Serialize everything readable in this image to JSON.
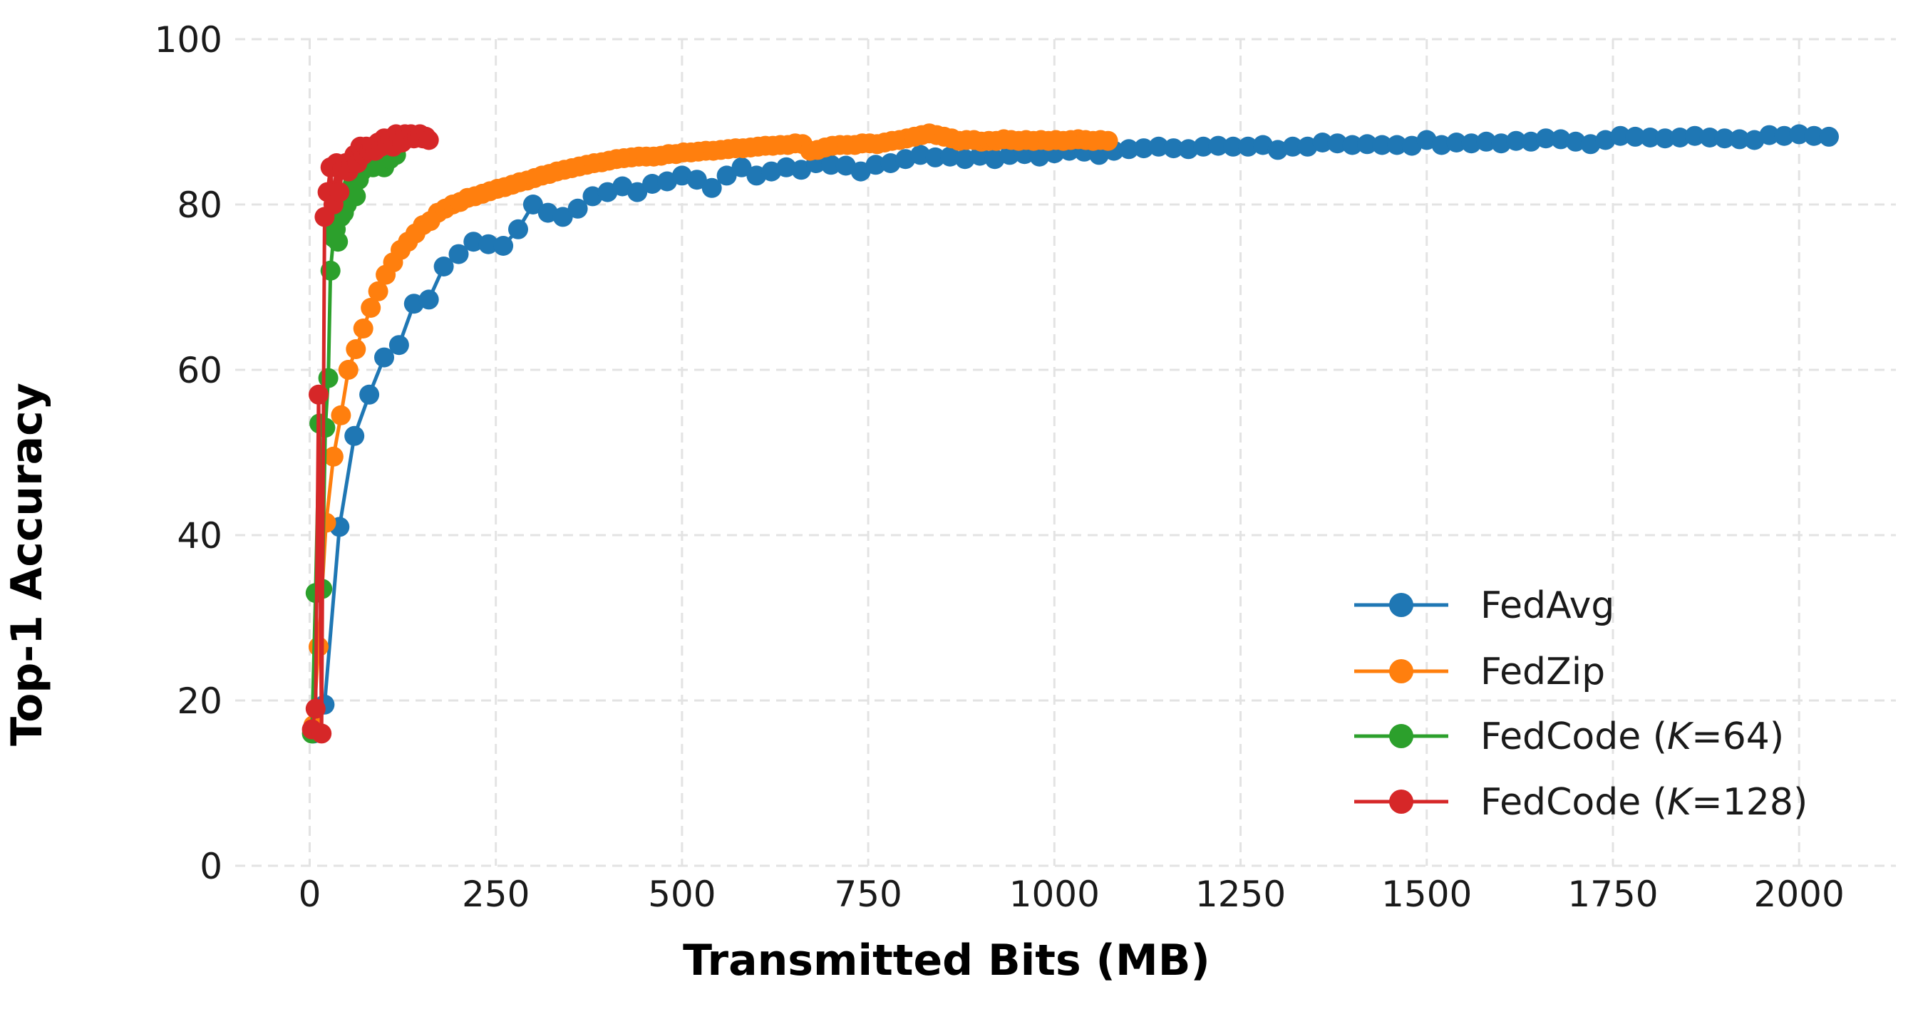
{
  "chart_data": {
    "type": "line",
    "title": "",
    "xlabel": "Transmitted Bits (MB)",
    "ylabel": "Top-1 Accuracy",
    "xlim": [
      -100,
      2130
    ],
    "ylim": [
      0,
      100
    ],
    "xticks": [
      0,
      250,
      500,
      750,
      1000,
      1250,
      1500,
      1750,
      2000
    ],
    "yticks": [
      0,
      20,
      40,
      60,
      80,
      100
    ],
    "grid": true,
    "legend_position": "lower-right",
    "legend": {
      "fedavg": "FedAvg",
      "fedzip": "FedZip",
      "fedcode64": {
        "prefix": "FedCode (",
        "k": "K",
        "value": "=64)"
      },
      "fedcode128": {
        "prefix": "FedCode (",
        "k": "K",
        "value": "=128)"
      }
    },
    "series": [
      {
        "name": "FedAvg",
        "color": "#1f77b4",
        "x": [
          5,
          20,
          40,
          60,
          80,
          100,
          120,
          140,
          160,
          180,
          200,
          220,
          240,
          260,
          280,
          300,
          320,
          340,
          360,
          380,
          400,
          420,
          440,
          460,
          480,
          500,
          520,
          540,
          560,
          580,
          600,
          620,
          640,
          660,
          680,
          700,
          720,
          740,
          760,
          780,
          800,
          820,
          840,
          860,
          880,
          900,
          920,
          940,
          960,
          980,
          1000,
          1020,
          1040,
          1060,
          1080,
          1100,
          1120,
          1140,
          1160,
          1180,
          1200,
          1220,
          1240,
          1260,
          1280,
          1300,
          1320,
          1340,
          1360,
          1380,
          1400,
          1420,
          1440,
          1460,
          1480,
          1500,
          1520,
          1540,
          1560,
          1580,
          1600,
          1620,
          1640,
          1660,
          1680,
          1700,
          1720,
          1740,
          1760,
          1780,
          1800,
          1820,
          1840,
          1860,
          1880,
          1900,
          1920,
          1940,
          1960,
          1980,
          2000,
          2020,
          2040
        ],
        "y": [
          16.0,
          19.5,
          41.0,
          52.0,
          57.0,
          61.5,
          63.0,
          68.0,
          68.5,
          72.5,
          74.0,
          75.5,
          75.2,
          75.0,
          77.0,
          80.0,
          79.0,
          78.5,
          79.5,
          81.0,
          81.5,
          82.2,
          81.5,
          82.5,
          82.8,
          83.5,
          83.0,
          82.0,
          83.5,
          84.5,
          83.5,
          84.0,
          84.5,
          84.2,
          85.0,
          84.8,
          84.7,
          84.0,
          84.8,
          85.0,
          85.5,
          86.0,
          85.7,
          85.8,
          85.5,
          85.9,
          85.5,
          86.0,
          86.1,
          85.8,
          86.2,
          86.5,
          86.4,
          86.0,
          86.5,
          86.7,
          86.8,
          87.0,
          86.8,
          86.7,
          87.0,
          87.1,
          87.0,
          87.0,
          87.2,
          86.6,
          87.0,
          87.0,
          87.5,
          87.4,
          87.2,
          87.3,
          87.2,
          87.2,
          87.1,
          87.8,
          87.2,
          87.5,
          87.4,
          87.6,
          87.4,
          87.7,
          87.6,
          88.0,
          87.9,
          87.6,
          87.3,
          87.8,
          88.3,
          88.2,
          88.1,
          88.0,
          88.1,
          88.3,
          88.1,
          88.0,
          87.9,
          87.8,
          88.4,
          88.3,
          88.5,
          88.3,
          88.2
        ]
      },
      {
        "name": "FedZip",
        "color": "#ff7f0e",
        "x": [
          5,
          12,
          22,
          32,
          42,
          52,
          62,
          72,
          82,
          92,
          102,
          112,
          122,
          132,
          142,
          152,
          162,
          172,
          182,
          192,
          202,
          212,
          222,
          232,
          242,
          252,
          262,
          272,
          282,
          292,
          302,
          312,
          322,
          332,
          342,
          352,
          362,
          372,
          382,
          392,
          402,
          412,
          422,
          432,
          442,
          452,
          462,
          472,
          482,
          492,
          502,
          512,
          522,
          532,
          542,
          552,
          562,
          572,
          582,
          592,
          602,
          612,
          622,
          632,
          642,
          652,
          662,
          672,
          682,
          692,
          702,
          712,
          722,
          732,
          742,
          752,
          762,
          772,
          782,
          792,
          802,
          812,
          822,
          832,
          842,
          852,
          862,
          872,
          882,
          892,
          902,
          912,
          922,
          932,
          942,
          952,
          962,
          972,
          982,
          992,
          1002,
          1012,
          1022,
          1032,
          1042,
          1052,
          1062,
          1072
        ],
        "y": [
          17.0,
          26.5,
          41.5,
          49.5,
          54.5,
          60.0,
          62.5,
          65.0,
          67.5,
          69.5,
          71.5,
          73.0,
          74.5,
          75.5,
          76.5,
          77.5,
          78.0,
          79.0,
          79.5,
          80.0,
          80.3,
          80.8,
          81.0,
          81.3,
          81.6,
          81.9,
          82.1,
          82.4,
          82.7,
          82.9,
          83.2,
          83.5,
          83.7,
          84.0,
          84.2,
          84.4,
          84.6,
          84.8,
          85.0,
          85.1,
          85.3,
          85.5,
          85.6,
          85.7,
          85.8,
          85.8,
          85.8,
          85.9,
          86.1,
          86.1,
          86.3,
          86.3,
          86.4,
          86.5,
          86.5,
          86.6,
          86.7,
          86.8,
          86.8,
          86.9,
          87.0,
          87.1,
          87.1,
          87.2,
          87.2,
          87.4,
          87.3,
          86.5,
          86.6,
          86.9,
          87.1,
          87.2,
          87.2,
          87.2,
          87.4,
          87.4,
          87.3,
          87.5,
          87.7,
          87.8,
          88.0,
          88.2,
          88.4,
          88.6,
          88.4,
          88.2,
          88.0,
          87.7,
          87.8,
          87.8,
          87.6,
          87.7,
          87.7,
          87.9,
          87.8,
          87.7,
          87.8,
          87.7,
          87.8,
          87.7,
          87.8,
          87.7,
          87.8,
          87.9,
          87.8,
          87.7,
          87.8,
          87.7
        ]
      },
      {
        "name": "FedCode (K=64)",
        "color": "#2ca02c",
        "x": [
          3,
          8,
          13,
          17,
          21,
          25,
          28,
          32,
          35,
          38,
          42,
          46,
          50,
          54,
          58,
          62,
          66,
          70,
          75,
          80,
          85,
          90,
          95,
          100,
          108,
          116
        ],
        "y": [
          16.0,
          33.0,
          53.5,
          33.5,
          53.0,
          59.0,
          72.0,
          76.0,
          77.0,
          75.5,
          78.5,
          79.0,
          80.0,
          81.5,
          82.5,
          81.0,
          83.0,
          84.0,
          84.5,
          85.0,
          84.5,
          85.0,
          85.5,
          84.5,
          85.5,
          86.0
        ]
      },
      {
        "name": "FedCode (K=128)",
        "color": "#d62728",
        "x": [
          3,
          8,
          12,
          16,
          20,
          24,
          28,
          32,
          36,
          40,
          44,
          48,
          52,
          56,
          60,
          64,
          68,
          72,
          76,
          80,
          84,
          88,
          92,
          96,
          100,
          104,
          108,
          112,
          116,
          120,
          124,
          128,
          132,
          136,
          140,
          144,
          148,
          152,
          156,
          160
        ],
        "y": [
          16.5,
          19.0,
          57.0,
          16.0,
          78.5,
          81.5,
          84.5,
          80.0,
          85.0,
          81.5,
          84.5,
          85.0,
          84.0,
          85.0,
          86.0,
          85.0,
          87.0,
          86.0,
          87.0,
          86.5,
          87.0,
          86.5,
          87.5,
          87.0,
          88.0,
          87.5,
          88.0,
          87.0,
          88.5,
          88.0,
          87.5,
          88.5,
          88.0,
          88.5,
          88.0,
          88.3,
          88.5,
          88.0,
          88.2,
          87.8
        ]
      }
    ]
  }
}
